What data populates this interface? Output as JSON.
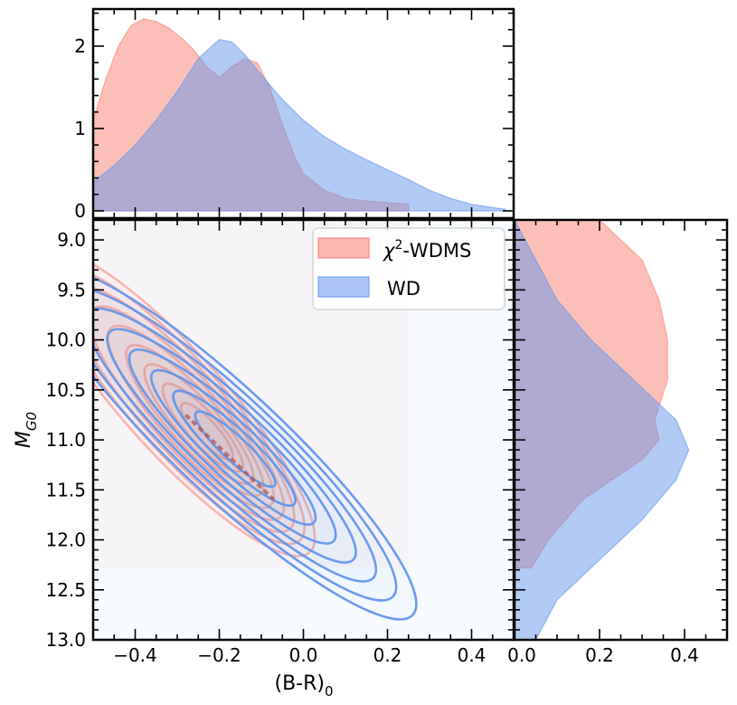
{
  "chart_data": [
    {
      "type": "area",
      "panel": "top-marginal",
      "xlim": [
        -0.5,
        0.5
      ],
      "ylim": [
        0,
        2.45
      ],
      "yticks": [
        0,
        1,
        2
      ],
      "ytick_labels": [
        "0",
        "1",
        "2"
      ],
      "series": [
        {
          "name": "χ²-WDMS",
          "color": "#fa8072",
          "x": [
            -0.5,
            -0.47,
            -0.44,
            -0.41,
            -0.38,
            -0.35,
            -0.32,
            -0.29,
            -0.26,
            -0.23,
            -0.2,
            -0.17,
            -0.14,
            -0.11,
            -0.08,
            -0.05,
            -0.02,
            0.0,
            0.05,
            0.1,
            0.15,
            0.2,
            0.25
          ],
          "y": [
            1.1,
            1.6,
            2.0,
            2.25,
            2.33,
            2.3,
            2.22,
            2.1,
            1.95,
            1.75,
            1.62,
            1.75,
            1.85,
            1.8,
            1.5,
            1.05,
            0.65,
            0.45,
            0.25,
            0.15,
            0.12,
            0.1,
            0.08
          ]
        },
        {
          "name": "WD",
          "color": "#6495ed",
          "x": [
            -0.5,
            -0.45,
            -0.4,
            -0.35,
            -0.3,
            -0.25,
            -0.2,
            -0.17,
            -0.14,
            -0.1,
            -0.05,
            0.0,
            0.05,
            0.1,
            0.15,
            0.2,
            0.25,
            0.3,
            0.35,
            0.4,
            0.45,
            0.48
          ],
          "y": [
            0.35,
            0.55,
            0.8,
            1.1,
            1.45,
            1.85,
            2.08,
            2.05,
            1.9,
            1.65,
            1.35,
            1.1,
            0.9,
            0.75,
            0.62,
            0.5,
            0.38,
            0.25,
            0.15,
            0.08,
            0.04,
            0.02
          ]
        }
      ]
    },
    {
      "type": "contour",
      "panel": "main",
      "xlabel": "(B-R)",
      "xlabel_sub": "0",
      "ylabel": "M",
      "ylabel_sub": "G0",
      "xlim": [
        -0.5,
        0.5
      ],
      "ylim": [
        13.0,
        8.8
      ],
      "xticks": [
        -0.4,
        -0.2,
        0.0,
        0.2,
        0.4
      ],
      "xtick_labels": [
        "−0.4",
        "−0.2",
        "0.0",
        "0.2",
        "0.4"
      ],
      "yticks": [
        9.0,
        9.5,
        10.0,
        10.5,
        11.0,
        11.5,
        12.0,
        12.5,
        13.0
      ],
      "ytick_labels": [
        "9.0",
        "9.5",
        "10.0",
        "10.5",
        "11.0",
        "11.5",
        "12.0",
        "12.5",
        "13.0"
      ],
      "series": [
        {
          "name": "χ²-WDMS",
          "color": "#fa8072",
          "center": [
            -0.22,
            10.95
          ],
          "levels": 9,
          "support_x": [
            -0.5,
            0.25
          ],
          "support_y": [
            8.8,
            12.28
          ]
        },
        {
          "name": "WD",
          "color": "#6495ed",
          "center": [
            -0.16,
            11.1
          ],
          "levels": 8,
          "support_x": [
            -0.5,
            0.5
          ],
          "support_y": [
            8.8,
            13.0
          ]
        }
      ],
      "legend": {
        "position": "top-right",
        "entries": [
          {
            "label_prefix": "χ",
            "label_sup": "2",
            "label_suffix": "-WDMS",
            "color": "#fa8072"
          },
          {
            "label_prefix": "WD",
            "label_sup": "",
            "label_suffix": "",
            "color": "#6495ed"
          }
        ]
      }
    },
    {
      "type": "area",
      "panel": "right-marginal",
      "orientation": "horizontal",
      "xlim": [
        0,
        0.5
      ],
      "xticks": [
        0.0,
        0.2,
        0.4
      ],
      "xtick_labels": [
        "0.0",
        "0.2",
        "0.4"
      ],
      "series": [
        {
          "name": "χ²-WDMS",
          "color": "#fa8072",
          "y": [
            8.8,
            9.2,
            9.6,
            10.0,
            10.4,
            10.8,
            11.0,
            11.2,
            11.6,
            12.0,
            12.28
          ],
          "x": [
            0.2,
            0.3,
            0.34,
            0.36,
            0.36,
            0.33,
            0.34,
            0.3,
            0.16,
            0.08,
            0.04
          ]
        },
        {
          "name": "WD",
          "color": "#6495ed",
          "y": [
            8.8,
            9.2,
            9.6,
            10.0,
            10.4,
            10.8,
            11.1,
            11.4,
            11.8,
            12.2,
            12.6,
            13.0
          ],
          "x": [
            0.0,
            0.05,
            0.1,
            0.18,
            0.28,
            0.38,
            0.41,
            0.38,
            0.3,
            0.2,
            0.1,
            0.05
          ]
        }
      ]
    }
  ]
}
